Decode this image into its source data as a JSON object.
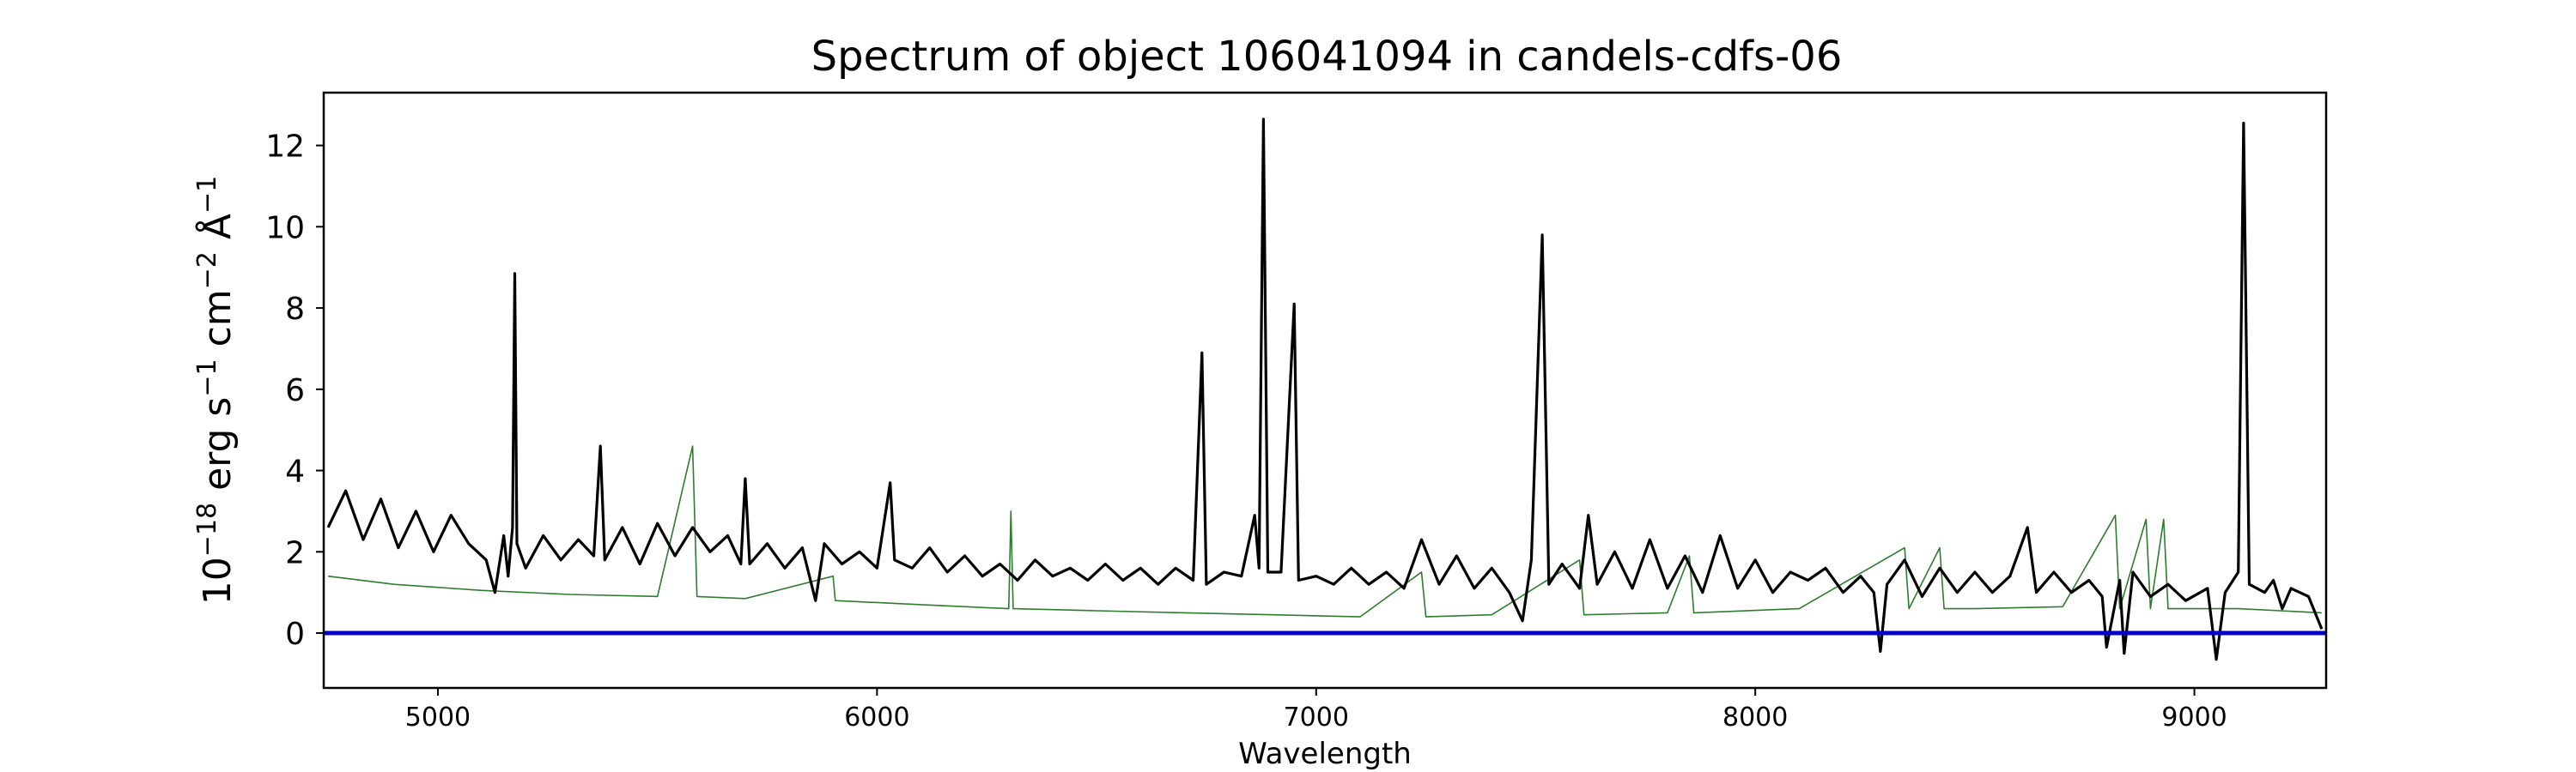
{
  "chart_data": {
    "type": "line",
    "title": "Spectrum of object 106041094 in candels-cdfs-06",
    "xlabel": "Wavelength",
    "ylabel_parts": {
      "base": "10",
      "exp1": "−18",
      "unit1": " erg s",
      "exp2": "−1",
      "unit2": " cm",
      "exp3": "−2",
      "unit3": " Å",
      "exp4": "−1"
    },
    "xlim": [
      4740,
      9300
    ],
    "ylim": [
      -1.35,
      13.3
    ],
    "x_ticks": [
      5000,
      6000,
      7000,
      8000,
      9000
    ],
    "x_tick_labels": [
      "5000",
      "6000",
      "7000",
      "8000",
      "9000"
    ],
    "y_ticks": [
      0,
      2,
      4,
      6,
      8,
      10,
      12
    ],
    "y_tick_labels": [
      "0",
      "2",
      "4",
      "6",
      "8",
      "10",
      "12"
    ],
    "grid": false,
    "legend": "none",
    "series": [
      {
        "role": "flux",
        "color": "#000000",
        "points": [
          [
            4750,
            2.6
          ],
          [
            4790,
            3.5
          ],
          [
            4830,
            2.3
          ],
          [
            4870,
            3.3
          ],
          [
            4910,
            2.1
          ],
          [
            4950,
            3.0
          ],
          [
            4990,
            2.0
          ],
          [
            5030,
            2.9
          ],
          [
            5070,
            2.2
          ],
          [
            5110,
            1.8
          ],
          [
            5130,
            1.0
          ],
          [
            5150,
            2.4
          ],
          [
            5160,
            1.4
          ],
          [
            5170,
            2.6
          ],
          [
            5175,
            8.85
          ],
          [
            5180,
            2.2
          ],
          [
            5200,
            1.6
          ],
          [
            5240,
            2.4
          ],
          [
            5280,
            1.8
          ],
          [
            5320,
            2.3
          ],
          [
            5355,
            1.9
          ],
          [
            5370,
            4.6
          ],
          [
            5380,
            1.8
          ],
          [
            5420,
            2.6
          ],
          [
            5460,
            1.7
          ],
          [
            5500,
            2.7
          ],
          [
            5540,
            1.9
          ],
          [
            5580,
            2.6
          ],
          [
            5620,
            2.0
          ],
          [
            5660,
            2.4
          ],
          [
            5690,
            1.7
          ],
          [
            5700,
            3.8
          ],
          [
            5710,
            1.7
          ],
          [
            5750,
            2.2
          ],
          [
            5790,
            1.6
          ],
          [
            5830,
            2.1
          ],
          [
            5860,
            0.8
          ],
          [
            5880,
            2.2
          ],
          [
            5920,
            1.7
          ],
          [
            5960,
            2.0
          ],
          [
            6000,
            1.6
          ],
          [
            6030,
            3.7
          ],
          [
            6040,
            1.8
          ],
          [
            6080,
            1.6
          ],
          [
            6120,
            2.1
          ],
          [
            6160,
            1.5
          ],
          [
            6200,
            1.9
          ],
          [
            6240,
            1.4
          ],
          [
            6280,
            1.7
          ],
          [
            6320,
            1.3
          ],
          [
            6360,
            1.8
          ],
          [
            6400,
            1.4
          ],
          [
            6440,
            1.6
          ],
          [
            6480,
            1.3
          ],
          [
            6520,
            1.7
          ],
          [
            6560,
            1.3
          ],
          [
            6600,
            1.6
          ],
          [
            6640,
            1.2
          ],
          [
            6680,
            1.6
          ],
          [
            6720,
            1.3
          ],
          [
            6740,
            6.9
          ],
          [
            6750,
            1.2
          ],
          [
            6790,
            1.5
          ],
          [
            6830,
            1.4
          ],
          [
            6860,
            2.9
          ],
          [
            6870,
            1.6
          ],
          [
            6880,
            12.65
          ],
          [
            6890,
            1.5
          ],
          [
            6920,
            1.5
          ],
          [
            6950,
            8.1
          ],
          [
            6960,
            1.3
          ],
          [
            7000,
            1.4
          ],
          [
            7040,
            1.2
          ],
          [
            7080,
            1.6
          ],
          [
            7120,
            1.2
          ],
          [
            7160,
            1.5
          ],
          [
            7200,
            1.1
          ],
          [
            7240,
            2.3
          ],
          [
            7280,
            1.2
          ],
          [
            7320,
            1.9
          ],
          [
            7360,
            1.1
          ],
          [
            7400,
            1.6
          ],
          [
            7440,
            1.0
          ],
          [
            7470,
            0.3
          ],
          [
            7490,
            1.8
          ],
          [
            7515,
            9.8
          ],
          [
            7530,
            1.2
          ],
          [
            7560,
            1.7
          ],
          [
            7600,
            1.1
          ],
          [
            7620,
            2.9
          ],
          [
            7640,
            1.2
          ],
          [
            7680,
            2.0
          ],
          [
            7720,
            1.1
          ],
          [
            7760,
            2.3
          ],
          [
            7800,
            1.1
          ],
          [
            7840,
            1.9
          ],
          [
            7880,
            1.0
          ],
          [
            7920,
            2.4
          ],
          [
            7960,
            1.1
          ],
          [
            8000,
            1.8
          ],
          [
            8040,
            1.0
          ],
          [
            8080,
            1.5
          ],
          [
            8120,
            1.3
          ],
          [
            8160,
            1.6
          ],
          [
            8200,
            1.0
          ],
          [
            8240,
            1.4
          ],
          [
            8270,
            1.0
          ],
          [
            8285,
            -0.45
          ],
          [
            8300,
            1.2
          ],
          [
            8340,
            1.8
          ],
          [
            8380,
            0.9
          ],
          [
            8420,
            1.6
          ],
          [
            8460,
            1.0
          ],
          [
            8500,
            1.5
          ],
          [
            8540,
            1.0
          ],
          [
            8580,
            1.4
          ],
          [
            8620,
            2.6
          ],
          [
            8640,
            1.0
          ],
          [
            8680,
            1.5
          ],
          [
            8720,
            1.0
          ],
          [
            8760,
            1.3
          ],
          [
            8790,
            0.9
          ],
          [
            8800,
            -0.35
          ],
          [
            8830,
            1.3
          ],
          [
            8840,
            -0.5
          ],
          [
            8860,
            1.5
          ],
          [
            8900,
            0.9
          ],
          [
            8940,
            1.2
          ],
          [
            8980,
            0.8
          ],
          [
            9030,
            1.1
          ],
          [
            9050,
            -0.65
          ],
          [
            9070,
            1.0
          ],
          [
            9100,
            1.5
          ],
          [
            9112,
            12.55
          ],
          [
            9125,
            1.2
          ],
          [
            9160,
            1.0
          ],
          [
            9180,
            1.3
          ],
          [
            9200,
            0.6
          ],
          [
            9220,
            1.1
          ],
          [
            9260,
            0.9
          ],
          [
            9290,
            0.1
          ]
        ]
      },
      {
        "role": "error",
        "color": "#2e7d2e",
        "points": [
          [
            4750,
            1.4
          ],
          [
            4900,
            1.2
          ],
          [
            5100,
            1.05
          ],
          [
            5300,
            0.95
          ],
          [
            5500,
            0.9
          ],
          [
            5580,
            4.6
          ],
          [
            5590,
            0.9
          ],
          [
            5700,
            0.85
          ],
          [
            5900,
            1.4
          ],
          [
            5905,
            0.8
          ],
          [
            6100,
            0.7
          ],
          [
            6300,
            0.6
          ],
          [
            6305,
            3.0
          ],
          [
            6310,
            0.6
          ],
          [
            6500,
            0.55
          ],
          [
            6700,
            0.5
          ],
          [
            6900,
            0.45
          ],
          [
            7100,
            0.4
          ],
          [
            7240,
            1.5
          ],
          [
            7250,
            0.4
          ],
          [
            7400,
            0.45
          ],
          [
            7600,
            1.8
          ],
          [
            7610,
            0.45
          ],
          [
            7800,
            0.5
          ],
          [
            7850,
            1.9
          ],
          [
            7860,
            0.5
          ],
          [
            8100,
            0.6
          ],
          [
            8340,
            2.1
          ],
          [
            8350,
            0.6
          ],
          [
            8420,
            2.1
          ],
          [
            8430,
            0.6
          ],
          [
            8500,
            0.6
          ],
          [
            8700,
            0.65
          ],
          [
            8820,
            2.9
          ],
          [
            8830,
            0.6
          ],
          [
            8890,
            2.8
          ],
          [
            8900,
            0.6
          ],
          [
            8930,
            2.8
          ],
          [
            8940,
            0.6
          ],
          [
            9100,
            0.6
          ],
          [
            9290,
            0.5
          ]
        ]
      },
      {
        "role": "zero-line",
        "color": "#0000cc",
        "points": [
          [
            4740,
            0
          ],
          [
            9300,
            0
          ]
        ]
      }
    ]
  }
}
